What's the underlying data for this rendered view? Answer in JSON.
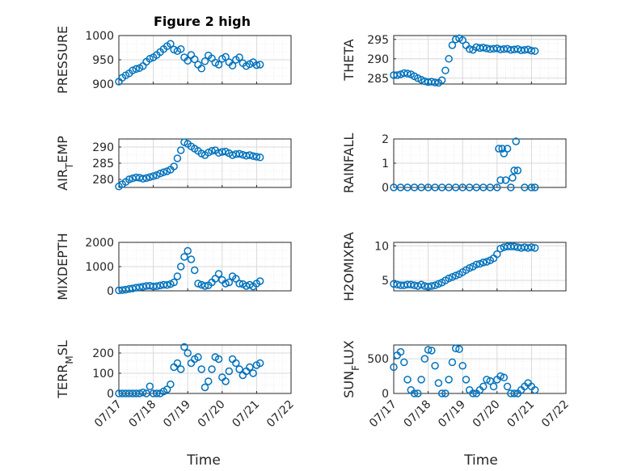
{
  "figure": {
    "title": "Figure 2 high",
    "xlabel": "Time"
  },
  "colors": {
    "marker": "#0072BD",
    "axes": "#262626",
    "grid": "#d9d9d9"
  },
  "chart_data": [
    {
      "type": "scatter",
      "ylabel": "PRESSURE",
      "ylim": [
        900,
        1000
      ],
      "yticks": [
        "1000",
        "950",
        "900"
      ],
      "ytick_values": [
        1000,
        950,
        900
      ],
      "x": [
        0,
        0.1,
        0.2,
        0.3,
        0.4,
        0.5,
        0.6,
        0.7,
        0.8,
        0.9,
        1.0,
        1.1,
        1.2,
        1.3,
        1.4,
        1.5,
        1.6,
        1.7,
        1.8,
        1.9,
        2.0,
        2.1,
        2.2,
        2.3,
        2.4,
        2.5,
        2.6,
        2.7,
        2.8,
        2.9,
        3.0,
        3.1,
        3.2,
        3.3,
        3.4,
        3.5,
        3.6,
        3.7,
        3.8,
        3.9,
        4.0,
        4.1
      ],
      "y": [
        905,
        913,
        918,
        922,
        928,
        931,
        933,
        937,
        946,
        952,
        955,
        960,
        966,
        972,
        978,
        983,
        971,
        968,
        972,
        955,
        948,
        960,
        951,
        940,
        932,
        947,
        959,
        953,
        944,
        940,
        952,
        956,
        945,
        938,
        950,
        955,
        943,
        937,
        941,
        945,
        939,
        940
      ]
    },
    {
      "type": "scatter",
      "ylabel": "THETA",
      "ylim": [
        283.5,
        296
      ],
      "yticks": [
        "295",
        "290",
        "285"
      ],
      "ytick_values": [
        295,
        290,
        285
      ],
      "x": [
        0,
        0.1,
        0.2,
        0.3,
        0.4,
        0.5,
        0.6,
        0.7,
        0.8,
        0.9,
        1.0,
        1.1,
        1.2,
        1.3,
        1.4,
        1.5,
        1.6,
        1.7,
        1.8,
        1.9,
        2.0,
        2.1,
        2.2,
        2.3,
        2.4,
        2.5,
        2.6,
        2.7,
        2.8,
        2.9,
        3.0,
        3.1,
        3.2,
        3.3,
        3.4,
        3.5,
        3.6,
        3.7,
        3.8,
        3.9,
        4.0,
        4.1
      ],
      "y": [
        285.8,
        285.8,
        286.0,
        286.3,
        286.2,
        286.0,
        285.5,
        285.0,
        284.6,
        284.2,
        284.0,
        284.1,
        283.9,
        283.8,
        284.5,
        287.0,
        290.0,
        293.5,
        295.0,
        295.3,
        294.8,
        293.5,
        292.5,
        292.3,
        293.0,
        292.8,
        292.9,
        292.7,
        292.5,
        292.6,
        292.7,
        292.4,
        292.5,
        292.6,
        292.3,
        292.4,
        292.5,
        292.2,
        292.3,
        292.4,
        292.1,
        292.0
      ]
    },
    {
      "type": "scatter",
      "ylabel": "AIR_TEMP",
      "ylim": [
        277.5,
        292.5
      ],
      "yticks": [
        "290",
        "285",
        "280"
      ],
      "ytick_values": [
        290,
        285,
        280
      ],
      "x": [
        0,
        0.1,
        0.2,
        0.3,
        0.4,
        0.5,
        0.6,
        0.7,
        0.8,
        0.9,
        1.0,
        1.1,
        1.2,
        1.3,
        1.4,
        1.5,
        1.6,
        1.7,
        1.8,
        1.9,
        2.0,
        2.1,
        2.2,
        2.3,
        2.4,
        2.5,
        2.6,
        2.7,
        2.8,
        2.9,
        3.0,
        3.1,
        3.2,
        3.3,
        3.4,
        3.5,
        3.6,
        3.7,
        3.8,
        3.9,
        4.0,
        4.1
      ],
      "y": [
        277.8,
        278.5,
        279.2,
        280.0,
        280.3,
        280.6,
        280.5,
        280.2,
        280.4,
        280.7,
        281.0,
        281.3,
        281.8,
        282.2,
        282.5,
        283.0,
        284.0,
        286.5,
        289.0,
        291.5,
        291.0,
        290.2,
        289.5,
        288.8,
        288.0,
        287.5,
        288.3,
        288.8,
        289.0,
        288.2,
        288.5,
        288.6,
        288.1,
        287.5,
        287.8,
        287.9,
        287.6,
        287.3,
        287.5,
        287.2,
        287.0,
        286.8
      ]
    },
    {
      "type": "scatter",
      "ylabel": "RAINFALL",
      "ylim": [
        0,
        2
      ],
      "yticks": [
        "2",
        "1",
        "0"
      ],
      "ytick_values": [
        2,
        1,
        0
      ],
      "x": [
        0,
        0.2,
        0.4,
        0.6,
        0.8,
        1.0,
        1.2,
        1.4,
        1.6,
        1.8,
        2.0,
        2.2,
        2.4,
        2.6,
        2.8,
        3.0,
        3.05,
        3.1,
        3.15,
        3.2,
        3.25,
        3.3,
        3.4,
        3.45,
        3.5,
        3.55,
        3.6,
        3.8,
        4.0,
        4.1
      ],
      "y": [
        0,
        0,
        0,
        0,
        0,
        0,
        0,
        0,
        0,
        0,
        0,
        0,
        0,
        0,
        0,
        0,
        1.6,
        0.3,
        1.6,
        1.4,
        0.3,
        1.6,
        0,
        0.4,
        0.7,
        1.9,
        0.7,
        0,
        0,
        0
      ]
    },
    {
      "type": "scatter",
      "ylabel": "MIXDEPTH",
      "ylim": [
        0,
        2000
      ],
      "yticks": [
        "2000",
        "1000",
        "0"
      ],
      "ytick_values": [
        2000,
        1000,
        0
      ],
      "x": [
        0,
        0.1,
        0.2,
        0.3,
        0.4,
        0.5,
        0.6,
        0.7,
        0.8,
        0.9,
        1.0,
        1.1,
        1.2,
        1.3,
        1.4,
        1.5,
        1.6,
        1.7,
        1.8,
        1.9,
        2.0,
        2.1,
        2.2,
        2.3,
        2.4,
        2.5,
        2.6,
        2.7,
        2.8,
        2.9,
        3.0,
        3.1,
        3.2,
        3.3,
        3.4,
        3.5,
        3.6,
        3.7,
        3.8,
        3.9,
        4.0,
        4.1
      ],
      "y": [
        20,
        30,
        50,
        80,
        100,
        130,
        150,
        170,
        200,
        210,
        180,
        190,
        220,
        250,
        240,
        280,
        350,
        600,
        1000,
        1400,
        1650,
        1300,
        850,
        300,
        250,
        200,
        230,
        350,
        500,
        700,
        450,
        300,
        350,
        600,
        500,
        300,
        280,
        200,
        250,
        180,
        300,
        400
      ]
    },
    {
      "type": "scatter",
      "ylabel": "H2OMIXRA",
      "ylim": [
        3.5,
        10.5
      ],
      "yticks": [
        "10",
        "5"
      ],
      "ytick_values": [
        10,
        5
      ],
      "x": [
        0,
        0.1,
        0.2,
        0.3,
        0.4,
        0.5,
        0.6,
        0.7,
        0.8,
        0.9,
        1.0,
        1.1,
        1.2,
        1.3,
        1.4,
        1.5,
        1.6,
        1.7,
        1.8,
        1.9,
        2.0,
        2.1,
        2.2,
        2.3,
        2.4,
        2.5,
        2.6,
        2.7,
        2.8,
        2.9,
        3.0,
        3.1,
        3.2,
        3.3,
        3.4,
        3.5,
        3.6,
        3.7,
        3.8,
        3.9,
        4.0,
        4.1
      ],
      "y": [
        4.5,
        4.4,
        4.3,
        4.3,
        4.4,
        4.4,
        4.3,
        4.2,
        4.4,
        4.2,
        4.1,
        4.2,
        4.3,
        4.5,
        4.7,
        5.0,
        5.3,
        5.5,
        5.7,
        5.9,
        6.2,
        6.5,
        6.8,
        7.0,
        7.3,
        7.4,
        7.6,
        7.7,
        7.9,
        8.2,
        8.8,
        9.6,
        9.8,
        9.9,
        9.9,
        9.9,
        9.8,
        9.7,
        9.8,
        9.7,
        9.8,
        9.7
      ]
    },
    {
      "type": "scatter",
      "ylabel": "TERR_MSL",
      "ylim": [
        0,
        240
      ],
      "yticks": [
        "200",
        "100",
        "0"
      ],
      "ytick_values": [
        200,
        100,
        0
      ],
      "x": [
        0,
        0.1,
        0.2,
        0.3,
        0.4,
        0.5,
        0.6,
        0.7,
        0.8,
        0.9,
        1.0,
        1.1,
        1.2,
        1.3,
        1.4,
        1.5,
        1.6,
        1.7,
        1.8,
        1.9,
        2.0,
        2.1,
        2.2,
        2.3,
        2.4,
        2.5,
        2.6,
        2.7,
        2.8,
        2.9,
        3.0,
        3.1,
        3.2,
        3.3,
        3.4,
        3.5,
        3.6,
        3.7,
        3.8,
        3.9,
        4.0,
        4.1
      ],
      "y": [
        0,
        0,
        0,
        0,
        0,
        0,
        0,
        5,
        0,
        35,
        0,
        0,
        0,
        10,
        20,
        45,
        130,
        150,
        120,
        230,
        200,
        150,
        170,
        180,
        120,
        30,
        60,
        120,
        180,
        170,
        80,
        60,
        110,
        170,
        150,
        120,
        90,
        110,
        130,
        100,
        140,
        150
      ]
    },
    {
      "type": "scatter",
      "ylabel": "SUN_FLUX",
      "ylim": [
        0,
        700
      ],
      "yticks": [
        "500",
        "0"
      ],
      "ytick_values": [
        500,
        0
      ],
      "x": [
        0,
        0.1,
        0.2,
        0.3,
        0.4,
        0.5,
        0.6,
        0.7,
        0.8,
        0.9,
        1.0,
        1.1,
        1.2,
        1.3,
        1.4,
        1.5,
        1.6,
        1.7,
        1.8,
        1.9,
        2.0,
        2.1,
        2.2,
        2.3,
        2.4,
        2.5,
        2.6,
        2.7,
        2.8,
        2.9,
        3.0,
        3.1,
        3.2,
        3.3,
        3.4,
        3.5,
        3.6,
        3.7,
        3.8,
        3.9,
        4.0,
        4.1
      ],
      "y": [
        380,
        550,
        600,
        450,
        200,
        50,
        0,
        0,
        200,
        500,
        630,
        620,
        400,
        150,
        0,
        0,
        200,
        450,
        650,
        640,
        400,
        200,
        50,
        0,
        0,
        50,
        100,
        200,
        180,
        100,
        200,
        250,
        230,
        100,
        0,
        0,
        0,
        50,
        100,
        150,
        100,
        50
      ]
    }
  ],
  "xaxis": {
    "ticks": [
      "07/17",
      "07/18",
      "07/19",
      "07/20",
      "07/21",
      "07/22"
    ],
    "tick_values": [
      0,
      1,
      2,
      3,
      4,
      5
    ],
    "xlim": [
      0,
      5
    ]
  }
}
